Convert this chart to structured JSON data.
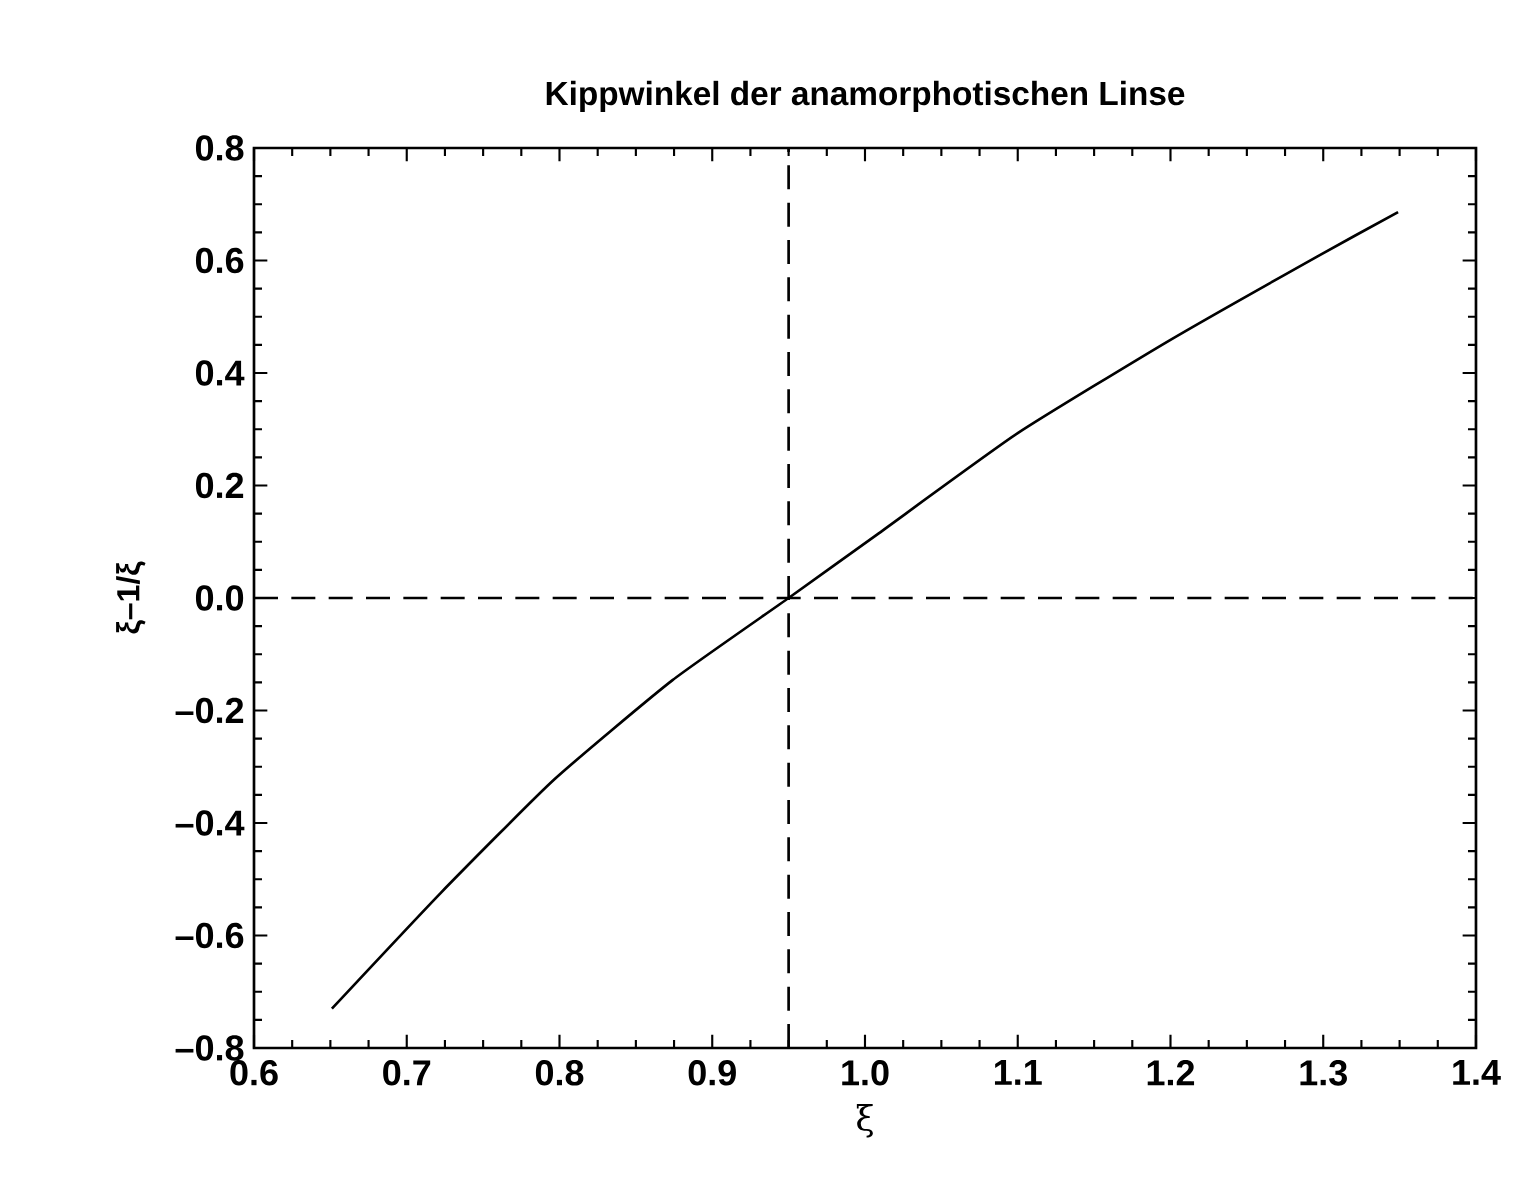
{
  "chart_data": {
    "type": "line",
    "title": "Kippwinkel der anamorphotischen Linse",
    "xlabel": "ξ",
    "ylabel": "ξ–1/ξ",
    "series": [
      {
        "color": "#000000",
        "x": [
          0.651,
          0.722,
          0.796,
          0.874,
          0.95,
          1.009,
          1.1,
          1.2,
          1.296,
          1.349
        ],
        "values": [
          -0.73,
          -0.525,
          -0.324,
          -0.146,
          0.0,
          0.115,
          0.293,
          0.459,
          0.607,
          0.686
        ]
      }
    ],
    "xlim": [
      0.6,
      1.4
    ],
    "ylim": [
      -0.8,
      0.8
    ],
    "xticks": [
      0.6,
      0.7,
      0.8,
      0.9,
      {
        "value": 1.0,
        "label": "1.0"
      },
      1.1,
      1.2,
      1.3,
      1.4
    ],
    "yticks": [
      {
        "value": -0.8,
        "label": "–0.8"
      },
      {
        "value": -0.6,
        "label": "–0.6"
      },
      {
        "value": -0.4,
        "label": "–0.4"
      },
      {
        "value": -0.2,
        "label": "–0.2"
      },
      {
        "value": 0,
        "label": "0.0"
      },
      0.2,
      0.4,
      0.6,
      0.8
    ],
    "ref_lines": [
      {
        "axis": "x",
        "value": 0.95,
        "line_style": "dashed",
        "color": "#000000"
      },
      {
        "axis": "y",
        "value": 0,
        "line_style": "dashed",
        "color": "#000000"
      }
    ],
    "grid": false,
    "marker": "none",
    "line_style": "solid"
  }
}
